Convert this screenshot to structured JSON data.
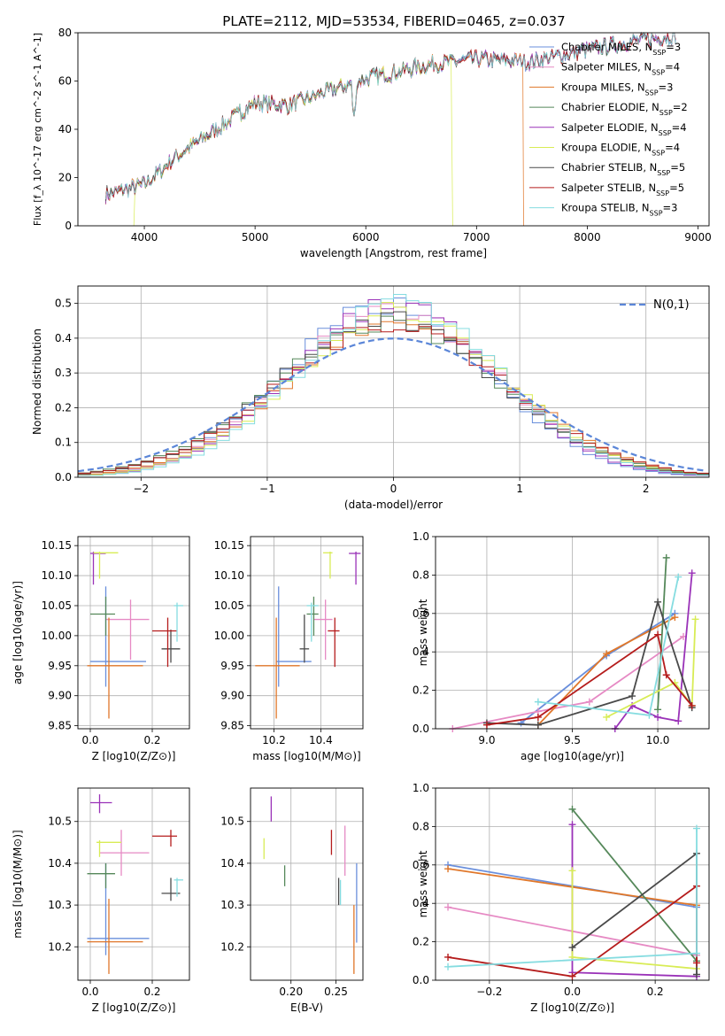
{
  "figure": {
    "title": "PLATE=2112, MJD=53534, FIBERID=0465, z=0.037"
  },
  "models": [
    {
      "name": "Chabrier MILES",
      "nssp": "3",
      "color": "#6a8fdc"
    },
    {
      "name": "Salpeter MILES",
      "nssp": "4",
      "color": "#e68ac4"
    },
    {
      "name": "Kroupa MILES",
      "nssp": "3",
      "color": "#e0772a"
    },
    {
      "name": "Chabrier ELODIE",
      "nssp": "2",
      "color": "#55885a"
    },
    {
      "name": "Salpeter ELODIE",
      "nssp": "4",
      "color": "#9a32b8"
    },
    {
      "name": "Kroupa ELODIE",
      "nssp": "4",
      "color": "#d8ec55"
    },
    {
      "name": "Chabrier STELIB",
      "nssp": "5",
      "color": "#4a4a4a"
    },
    {
      "name": "Salpeter STELIB",
      "nssp": "5",
      "color": "#b51c1c"
    },
    {
      "name": "Kroupa STELIB",
      "nssp": "3",
      "color": "#85dce0"
    }
  ],
  "chart_data": [
    {
      "id": "spectrum",
      "type": "line",
      "xlabel": "wavelength [Angstrom, rest frame]",
      "ylabel": "Flux [f_λ 10^-17 erg cm^-2 s^-1 A^-1]",
      "xlim": [
        3400,
        9100
      ],
      "ylim": [
        0,
        80
      ],
      "xticks": [
        4000,
        5000,
        6000,
        7000,
        8000,
        9000
      ],
      "yticks": [
        0,
        20,
        40,
        60,
        80
      ],
      "legend": "top-right",
      "continuum": {
        "x": [
          3650,
          4000,
          4300,
          5000,
          5300,
          6000,
          6600,
          7000,
          7500,
          8000,
          8500,
          8800
        ],
        "y": [
          13,
          17,
          29,
          51,
          50,
          61,
          67,
          69,
          68,
          73,
          77,
          79
        ]
      },
      "model_ranges": [
        [
          3650,
          8800
        ],
        [
          3650,
          8800
        ],
        [
          3650,
          7420
        ],
        [
          3650,
          8800
        ],
        [
          3650,
          8800
        ],
        [
          3910,
          6780
        ],
        [
          3650,
          8800
        ],
        [
          3650,
          8800
        ],
        [
          3650,
          8800
        ]
      ]
    },
    {
      "id": "residuals",
      "type": "bar",
      "xlabel": "(data-model)/error",
      "ylabel": "Normed distribution",
      "xlim": [
        -2.5,
        2.5
      ],
      "ylim": [
        0,
        0.55
      ],
      "xticks": [
        -2,
        -1,
        0,
        1,
        2
      ],
      "yticks": [
        0.0,
        0.1,
        0.2,
        0.3,
        0.4,
        0.5
      ],
      "legend": "top-right",
      "reference": {
        "name": "N(0,1)",
        "mu": 0,
        "sigma": 1,
        "color": "#5b86d8"
      }
    },
    {
      "id": "age_vs_Z",
      "type": "scatter",
      "xlabel": "Z [log10(Z/Z⊙)]",
      "ylabel": "age [log10(age/yr)]",
      "xlim": [
        -0.04,
        0.32
      ],
      "ylim": [
        9.845,
        10.165
      ],
      "xticks": [
        0.0,
        0.2
      ],
      "yticks": [
        9.85,
        9.9,
        9.95,
        10.0,
        10.05,
        10.1,
        10.15
      ],
      "points": [
        {
          "x": 0.05,
          "y": 9.957,
          "xlo": 0.0,
          "xhi": 0.18,
          "ylo": 9.915,
          "yhi": 10.082
        },
        {
          "x": 0.13,
          "y": 10.027,
          "xlo": 0.05,
          "xhi": 0.19,
          "ylo": 9.96,
          "yhi": 10.06
        },
        {
          "x": 0.06,
          "y": 9.95,
          "xlo": -0.01,
          "xhi": 0.17,
          "ylo": 9.862,
          "yhi": 10.03
        },
        {
          "x": 0.05,
          "y": 10.036,
          "xlo": 0.0,
          "xhi": 0.08,
          "ylo": 10.0,
          "yhi": 10.065
        },
        {
          "x": 0.01,
          "y": 10.137,
          "xlo": 0.0,
          "xhi": 0.05,
          "ylo": 10.085,
          "yhi": 10.14
        },
        {
          "x": 0.03,
          "y": 10.138,
          "xlo": 0.01,
          "xhi": 0.09,
          "ylo": 10.095,
          "yhi": 10.14
        },
        {
          "x": 0.26,
          "y": 9.978,
          "xlo": 0.23,
          "xhi": 0.29,
          "ylo": 9.955,
          "yhi": 10.01
        },
        {
          "x": 0.25,
          "y": 10.008,
          "xlo": 0.2,
          "xhi": 0.28,
          "ylo": 9.948,
          "yhi": 10.03
        },
        {
          "x": 0.28,
          "y": 10.05,
          "xlo": 0.27,
          "xhi": 0.3,
          "ylo": 9.99,
          "yhi": 10.055
        }
      ]
    },
    {
      "id": "age_vs_mass",
      "type": "scatter",
      "xlabel": "mass [log10(M/M⊙)]",
      "ylabel": "",
      "xlim": [
        10.1,
        10.58
      ],
      "ylim": [
        9.845,
        10.165
      ],
      "xticks": [
        10.2,
        10.4
      ],
      "yticks": [
        9.85,
        9.9,
        9.95,
        10.0,
        10.05,
        10.1,
        10.15
      ],
      "points": [
        {
          "x": 10.22,
          "y": 9.957,
          "xlo": 10.21,
          "xhi": 10.36,
          "ylo": 9.915,
          "yhi": 10.082
        },
        {
          "x": 10.42,
          "y": 10.027,
          "xlo": 10.37,
          "xhi": 10.45,
          "ylo": 9.96,
          "yhi": 10.06
        },
        {
          "x": 10.21,
          "y": 9.95,
          "xlo": 10.12,
          "xhi": 10.31,
          "ylo": 9.862,
          "yhi": 10.03
        },
        {
          "x": 10.37,
          "y": 10.036,
          "xlo": 10.34,
          "xhi": 10.39,
          "ylo": 10.0,
          "yhi": 10.065
        },
        {
          "x": 10.55,
          "y": 10.137,
          "xlo": 10.52,
          "xhi": 10.57,
          "ylo": 10.085,
          "yhi": 10.14
        },
        {
          "x": 10.44,
          "y": 10.138,
          "xlo": 10.41,
          "xhi": 10.45,
          "ylo": 10.095,
          "yhi": 10.14
        },
        {
          "x": 10.33,
          "y": 9.978,
          "xlo": 10.31,
          "xhi": 10.35,
          "ylo": 9.955,
          "yhi": 10.035
        },
        {
          "x": 10.46,
          "y": 10.008,
          "xlo": 10.43,
          "xhi": 10.48,
          "ylo": 9.948,
          "yhi": 10.03
        },
        {
          "x": 10.36,
          "y": 10.05,
          "xlo": 10.34,
          "xhi": 10.39,
          "ylo": 9.99,
          "yhi": 10.055
        }
      ]
    },
    {
      "id": "massweight_vs_age",
      "type": "line",
      "xlabel": "age [log10(age/yr)]",
      "ylabel": "mass weight",
      "xlim": [
        8.7,
        10.3
      ],
      "ylim": [
        0,
        1
      ],
      "xticks": [
        9.0,
        9.5,
        10.0
      ],
      "yticks": [
        0.0,
        0.2,
        0.4,
        0.6,
        0.8,
        1.0
      ],
      "series": [
        {
          "x": [
            9.2,
            9.7,
            10.1
          ],
          "y": [
            0.03,
            0.38,
            0.6
          ]
        },
        {
          "x": [
            8.8,
            9.3,
            9.6,
            10.15
          ],
          "y": [
            0.0,
            0.09,
            0.14,
            0.48
          ]
        },
        {
          "x": [
            9.3,
            9.7,
            10.1
          ],
          "y": [
            0.02,
            0.39,
            0.58
          ]
        },
        {
          "x": [
            10.0,
            10.05
          ],
          "y": [
            0.1,
            0.89
          ]
        },
        {
          "x": [
            9.75,
            9.85,
            10.0,
            10.12,
            10.2
          ],
          "y": [
            0.0,
            0.12,
            0.06,
            0.04,
            0.81
          ]
        },
        {
          "x": [
            9.7,
            10.1,
            10.2,
            10.22
          ],
          "y": [
            0.06,
            0.24,
            0.12,
            0.57
          ]
        },
        {
          "x": [
            9.0,
            9.3,
            9.85,
            10.0,
            10.2
          ],
          "y": [
            0.03,
            0.02,
            0.17,
            0.66,
            0.11
          ]
        },
        {
          "x": [
            9.0,
            9.3,
            10.0,
            10.05,
            10.2
          ],
          "y": [
            0.02,
            0.06,
            0.49,
            0.28,
            0.12
          ]
        },
        {
          "x": [
            9.3,
            9.95,
            10.12
          ],
          "y": [
            0.14,
            0.07,
            0.79
          ]
        }
      ]
    },
    {
      "id": "mass_vs_Z",
      "type": "scatter",
      "xlabel": "Z [log10(Z/Z⊙)]",
      "ylabel": "mass [log10(M/M⊙)]",
      "xlim": [
        -0.04,
        0.32
      ],
      "ylim": [
        10.12,
        10.58
      ],
      "xticks": [
        0.0,
        0.2
      ],
      "yticks": [
        10.2,
        10.3,
        10.4,
        10.5
      ],
      "points": [
        {
          "x": 0.05,
          "y": 10.22,
          "xlo": -0.01,
          "xhi": 0.19,
          "ylo": 10.18,
          "yhi": 10.4
        },
        {
          "x": 0.1,
          "y": 10.425,
          "xlo": 0.03,
          "xhi": 0.19,
          "ylo": 10.37,
          "yhi": 10.48
        },
        {
          "x": 0.06,
          "y": 10.212,
          "xlo": -0.01,
          "xhi": 0.17,
          "ylo": 10.135,
          "yhi": 10.315
        },
        {
          "x": 0.05,
          "y": 10.375,
          "xlo": -0.01,
          "xhi": 0.08,
          "ylo": 10.34,
          "yhi": 10.4
        },
        {
          "x": 0.03,
          "y": 10.545,
          "xlo": 0.0,
          "xhi": 0.07,
          "ylo": 10.52,
          "yhi": 10.565
        },
        {
          "x": 0.03,
          "y": 10.45,
          "xlo": 0.02,
          "xhi": 0.1,
          "ylo": 10.415,
          "yhi": 10.455
        },
        {
          "x": 0.26,
          "y": 10.328,
          "xlo": 0.23,
          "xhi": 0.29,
          "ylo": 10.31,
          "yhi": 10.365
        },
        {
          "x": 0.26,
          "y": 10.465,
          "xlo": 0.2,
          "xhi": 0.28,
          "ylo": 10.44,
          "yhi": 10.48
        },
        {
          "x": 0.28,
          "y": 10.36,
          "xlo": 0.27,
          "xhi": 0.3,
          "ylo": 10.32,
          "yhi": 10.365
        }
      ]
    },
    {
      "id": "mass_vs_ebv",
      "type": "scatter",
      "xlabel": "E(B-V)",
      "ylabel": "",
      "xlim": [
        0.155,
        0.28
      ],
      "ylim": [
        10.12,
        10.58
      ],
      "xticks": [
        0.2,
        0.25
      ],
      "yticks": [
        10.2,
        10.3,
        10.4,
        10.5
      ],
      "points": [
        {
          "x": 0.273,
          "y": 10.3,
          "ylo": 10.21,
          "yhi": 10.4
        },
        {
          "x": 0.26,
          "y": 10.42,
          "ylo": 10.37,
          "yhi": 10.49
        },
        {
          "x": 0.27,
          "y": 10.22,
          "ylo": 10.135,
          "yhi": 10.3
        },
        {
          "x": 0.193,
          "y": 10.37,
          "ylo": 10.345,
          "yhi": 10.395
        },
        {
          "x": 0.178,
          "y": 10.535,
          "ylo": 10.5,
          "yhi": 10.56
        },
        {
          "x": 0.17,
          "y": 10.43,
          "ylo": 10.41,
          "yhi": 10.46
        },
        {
          "x": 0.253,
          "y": 10.33,
          "ylo": 10.3,
          "yhi": 10.365
        },
        {
          "x": 0.245,
          "y": 10.45,
          "ylo": 10.42,
          "yhi": 10.48
        },
        {
          "x": 0.255,
          "y": 10.33,
          "ylo": 10.3,
          "yhi": 10.36
        }
      ]
    },
    {
      "id": "massweight_vs_Z",
      "type": "line",
      "xlabel": "Z [log10(Z/Z⊙)]",
      "ylabel": "mass weight",
      "xlim": [
        -0.33,
        0.33
      ],
      "ylim": [
        0,
        1
      ],
      "xticks": [
        -0.2,
        0.0,
        0.2
      ],
      "yticks": [
        0.0,
        0.2,
        0.4,
        0.6,
        0.8,
        1.0
      ],
      "series": [
        {
          "x": [
            -0.3,
            0.3
          ],
          "y": [
            0.6,
            0.38
          ]
        },
        {
          "x": [
            -0.3,
            0.3
          ],
          "y": [
            0.38,
            0.13
          ]
        },
        {
          "x": [
            -0.3,
            0.3
          ],
          "y": [
            0.58,
            0.39
          ]
        },
        {
          "x": [
            0.0,
            0.3
          ],
          "y": [
            0.89,
            0.1
          ]
        },
        {
          "x": [
            0.0,
            0.0,
            0.3
          ],
          "y": [
            0.81,
            0.04,
            0.02
          ]
        },
        {
          "x": [
            0.0,
            0.0,
            0.3
          ],
          "y": [
            0.57,
            0.12,
            0.06
          ]
        },
        {
          "x": [
            0.0,
            0.3,
            0.3
          ],
          "y": [
            0.17,
            0.66,
            0.03
          ]
        },
        {
          "x": [
            -0.3,
            0.0,
            0.3,
            0.3
          ],
          "y": [
            0.12,
            0.02,
            0.49,
            0.09
          ]
        },
        {
          "x": [
            -0.3,
            0.3,
            0.3
          ],
          "y": [
            0.07,
            0.14,
            0.79
          ]
        }
      ]
    }
  ]
}
